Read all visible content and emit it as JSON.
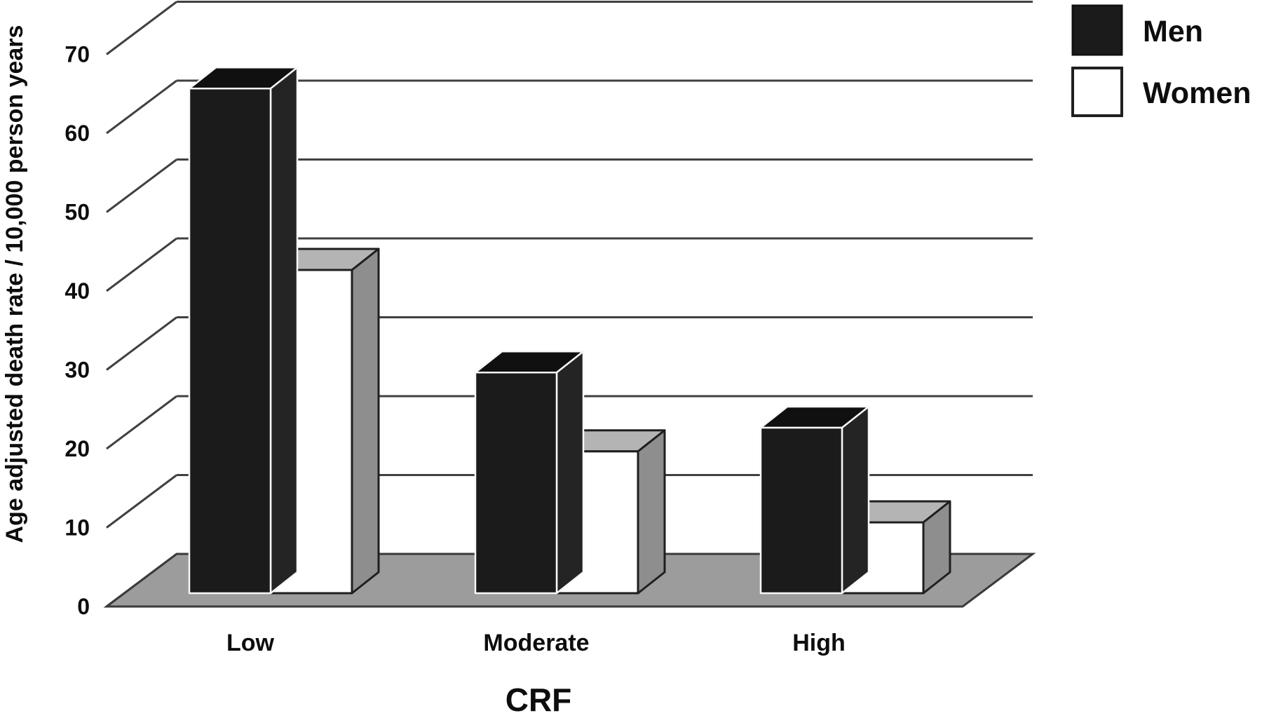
{
  "chart_data": {
    "type": "bar",
    "projection": "3d-oblique",
    "title": "",
    "xlabel": "CRF",
    "ylabel": "Age adjusted death rate / 10,000 person years",
    "categories": [
      "Low",
      "Moderate",
      "High"
    ],
    "series": [
      {
        "name": "Men",
        "values": [
          63,
          27,
          20
        ],
        "fill": "#1b1b1b"
      },
      {
        "name": "Women",
        "values": [
          40,
          17,
          8
        ],
        "fill": "#ffffff"
      }
    ],
    "ylim": [
      0,
      75
    ],
    "yticks": [
      0,
      10,
      20,
      30,
      40,
      50,
      60,
      70
    ],
    "grid": true,
    "legend_position": "top-right",
    "colors": {
      "grid_line": "#404040",
      "floor": "#9c9c9c",
      "floor_edge": "#3a3a3a",
      "men_front": "#1b1b1b",
      "men_top": "#101010",
      "men_side": "#242424",
      "men_seam": "#f7f7f7",
      "women_front": "#ffffff",
      "women_top": "#b4b4b4",
      "women_side": "#8e8e8e",
      "women_edge": "#1f1f1f",
      "text": "#0d0d0d"
    }
  }
}
